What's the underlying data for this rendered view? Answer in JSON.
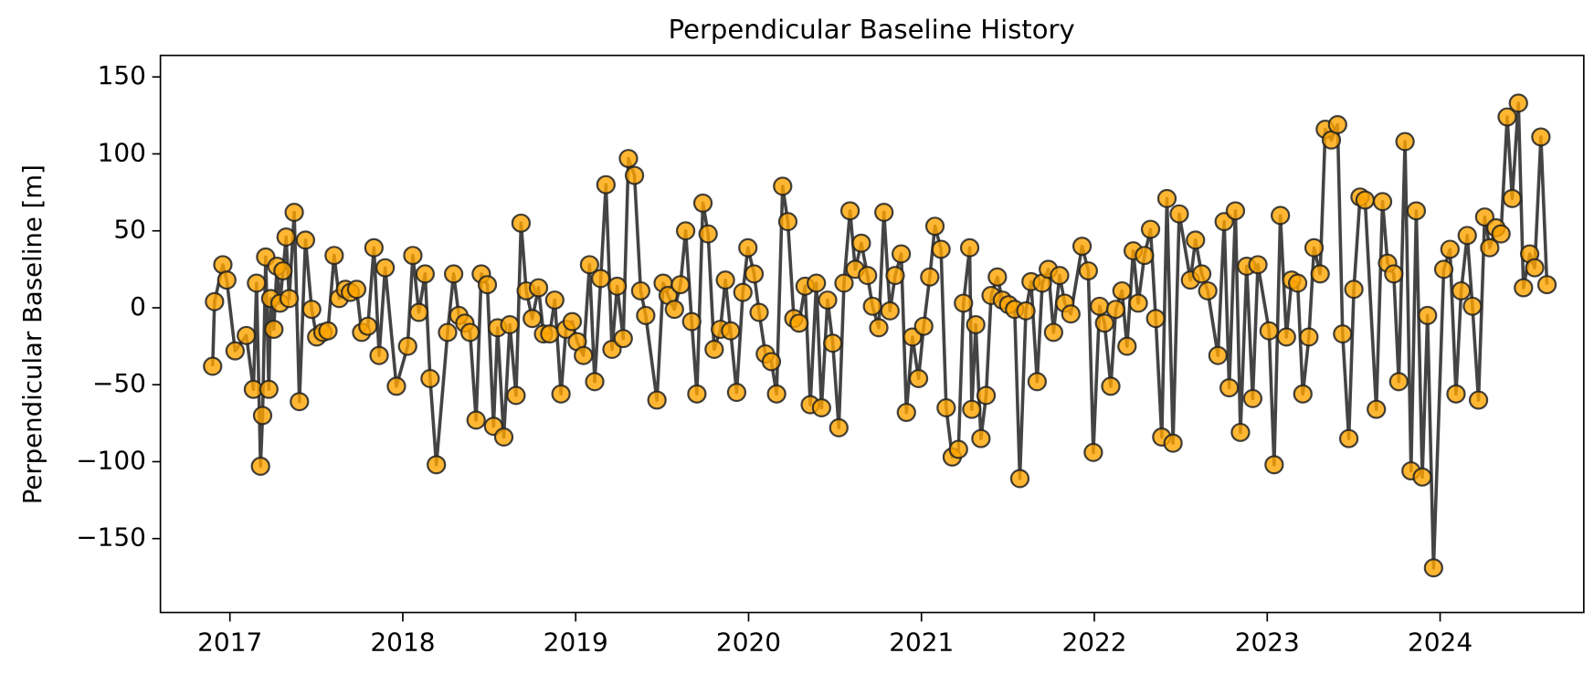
{
  "chart_data": {
    "type": "line",
    "title": "Perpendicular Baseline History",
    "ylabel": "Perpendicular Baseline [m]",
    "color": "#ffa500",
    "line_color": "#444444",
    "edge_color": "#222222",
    "xlim": [
      2016.598,
      2024.831
    ],
    "ylim": [
      -198,
      164
    ],
    "xticks": [
      2017,
      2018,
      2019,
      2020,
      2021,
      2022,
      2023,
      2024
    ],
    "yticks": [
      {
        "value": -150,
        "label": "−150"
      },
      {
        "value": -100,
        "label": "−100"
      },
      {
        "value": -50,
        "label": "−50"
      },
      0,
      50,
      100,
      150
    ],
    "x": [
      2016.9,
      2016.911,
      2016.959,
      2016.982,
      2017.03,
      2017.095,
      2017.136,
      2017.154,
      2017.177,
      2017.189,
      2017.207,
      2017.225,
      2017.236,
      2017.254,
      2017.272,
      2017.29,
      2017.307,
      2017.325,
      2017.343,
      2017.372,
      2017.402,
      2017.437,
      2017.473,
      2017.502,
      2017.538,
      2017.567,
      2017.603,
      2017.632,
      2017.668,
      2017.697,
      2017.733,
      2017.762,
      2017.798,
      2017.833,
      2017.863,
      2017.898,
      2017.963,
      2018.028,
      2018.058,
      2018.093,
      2018.129,
      2018.158,
      2018.194,
      2018.259,
      2018.294,
      2018.324,
      2018.359,
      2018.389,
      2018.424,
      2018.454,
      2018.489,
      2018.525,
      2018.548,
      2018.584,
      2018.619,
      2018.655,
      2018.684,
      2018.714,
      2018.749,
      2018.785,
      2018.814,
      2018.85,
      2018.879,
      2018.915,
      2018.944,
      2018.98,
      2019.009,
      2019.045,
      2019.08,
      2019.11,
      2019.145,
      2019.175,
      2019.21,
      2019.24,
      2019.275,
      2019.305,
      2019.34,
      2019.376,
      2019.405,
      2019.47,
      2019.506,
      2019.535,
      2019.571,
      2019.606,
      2019.636,
      2019.671,
      2019.701,
      2019.736,
      2019.766,
      2019.801,
      2019.837,
      2019.866,
      2019.896,
      2019.931,
      2019.967,
      2019.996,
      2020.032,
      2020.061,
      2020.097,
      2020.132,
      2020.162,
      2020.197,
      2020.227,
      2020.262,
      2020.292,
      2020.327,
      2020.357,
      2020.392,
      2020.422,
      2020.457,
      2020.487,
      2020.522,
      2020.552,
      2020.587,
      2020.617,
      2020.652,
      2020.688,
      2020.717,
      2020.753,
      2020.783,
      2020.818,
      2020.848,
      2020.883,
      2020.913,
      2020.948,
      2020.983,
      2021.013,
      2021.048,
      2021.078,
      2021.113,
      2021.143,
      2021.178,
      2021.214,
      2021.243,
      2021.279,
      2021.291,
      2021.314,
      2021.344,
      2021.374,
      2021.403,
      2021.439,
      2021.468,
      2021.504,
      2021.539,
      2021.569,
      2021.604,
      2021.634,
      2021.669,
      2021.699,
      2021.734,
      2021.764,
      2021.799,
      2021.829,
      2021.864,
      2021.929,
      2021.965,
      2021.994,
      2022.03,
      2022.059,
      2022.095,
      2022.124,
      2022.16,
      2022.189,
      2022.225,
      2022.254,
      2022.29,
      2022.325,
      2022.355,
      2022.39,
      2022.42,
      2022.455,
      2022.491,
      2022.556,
      2022.585,
      2022.621,
      2022.656,
      2022.715,
      2022.751,
      2022.78,
      2022.816,
      2022.845,
      2022.881,
      2022.916,
      2022.946,
      2023.011,
      2023.04,
      2023.076,
      2023.111,
      2023.141,
      2023.176,
      2023.206,
      2023.241,
      2023.271,
      2023.306,
      2023.336,
      2023.371,
      2023.407,
      2023.436,
      2023.472,
      2023.501,
      2023.537,
      2023.566,
      2023.631,
      2023.667,
      2023.696,
      2023.732,
      2023.761,
      2023.797,
      2023.832,
      2023.862,
      2023.897,
      2023.927,
      2023.962,
      2024.021,
      2024.057,
      2024.092,
      2024.122,
      2024.157,
      2024.187,
      2024.222,
      2024.258,
      2024.287,
      2024.323,
      2024.352,
      2024.388,
      2024.417,
      2024.453,
      2024.482,
      2024.518,
      2024.547,
      2024.583,
      2024.618
    ],
    "values": [
      -38,
      4,
      28,
      18,
      -28,
      -18,
      -53,
      16,
      -103,
      -70,
      33,
      -53,
      6,
      -14,
      27,
      3,
      24,
      46,
      6,
      62,
      -61,
      44,
      -1,
      -19,
      -16,
      -15,
      34,
      6,
      12,
      10,
      12,
      -16,
      -12,
      39,
      -31,
      26,
      -51,
      -25,
      34,
      -3,
      22,
      -46,
      -102,
      -16,
      22,
      -5,
      -10,
      -16,
      -73,
      22,
      15,
      -77,
      -13,
      -84,
      -11,
      -57,
      55,
      11,
      -7,
      13,
      -17,
      -17,
      5,
      -56,
      -14,
      -9,
      -22,
      -31,
      28,
      -48,
      19,
      80,
      -27,
      14,
      -20,
      97,
      86,
      11,
      -5,
      -60,
      16,
      8,
      -1,
      15,
      50,
      -9,
      -56,
      68,
      48,
      -27,
      -14,
      18,
      -15,
      -55,
      10,
      39,
      22,
      -3,
      -30,
      -35,
      -56,
      79,
      56,
      -7,
      -10,
      14,
      -63,
      16,
      -65,
      5,
      -23,
      -78,
      16,
      63,
      25,
      42,
      21,
      1,
      -13,
      62,
      -2,
      21,
      35,
      -68,
      -19,
      -46,
      -12,
      20,
      53,
      38,
      -65,
      -97,
      -92,
      3,
      39,
      -66,
      -11,
      -85,
      -57,
      8,
      20,
      5,
      2,
      -1,
      -111,
      -2,
      17,
      -48,
      16,
      25,
      -16,
      21,
      3,
      -4,
      40,
      24,
      -94,
      1,
      -10,
      -51,
      -1,
      11,
      -25,
      37,
      3,
      34,
      51,
      -7,
      -84,
      71,
      -88,
      61,
      18,
      44,
      22,
      11,
      -31,
      56,
      -52,
      63,
      -81,
      27,
      -59,
      28,
      -15,
      -102,
      60,
      -19,
      18,
      16,
      -56,
      -19,
      39,
      22,
      116,
      109,
      119,
      -17,
      -85,
      12,
      72,
      70,
      -66,
      69,
      29,
      22,
      -48,
      108,
      -106,
      63,
      -110,
      -5,
      -169,
      25,
      38,
      -56,
      11,
      47,
      1,
      -60,
      59,
      39,
      52,
      48,
      124,
      71,
      133,
      13,
      35,
      26,
      111,
      15
    ]
  }
}
